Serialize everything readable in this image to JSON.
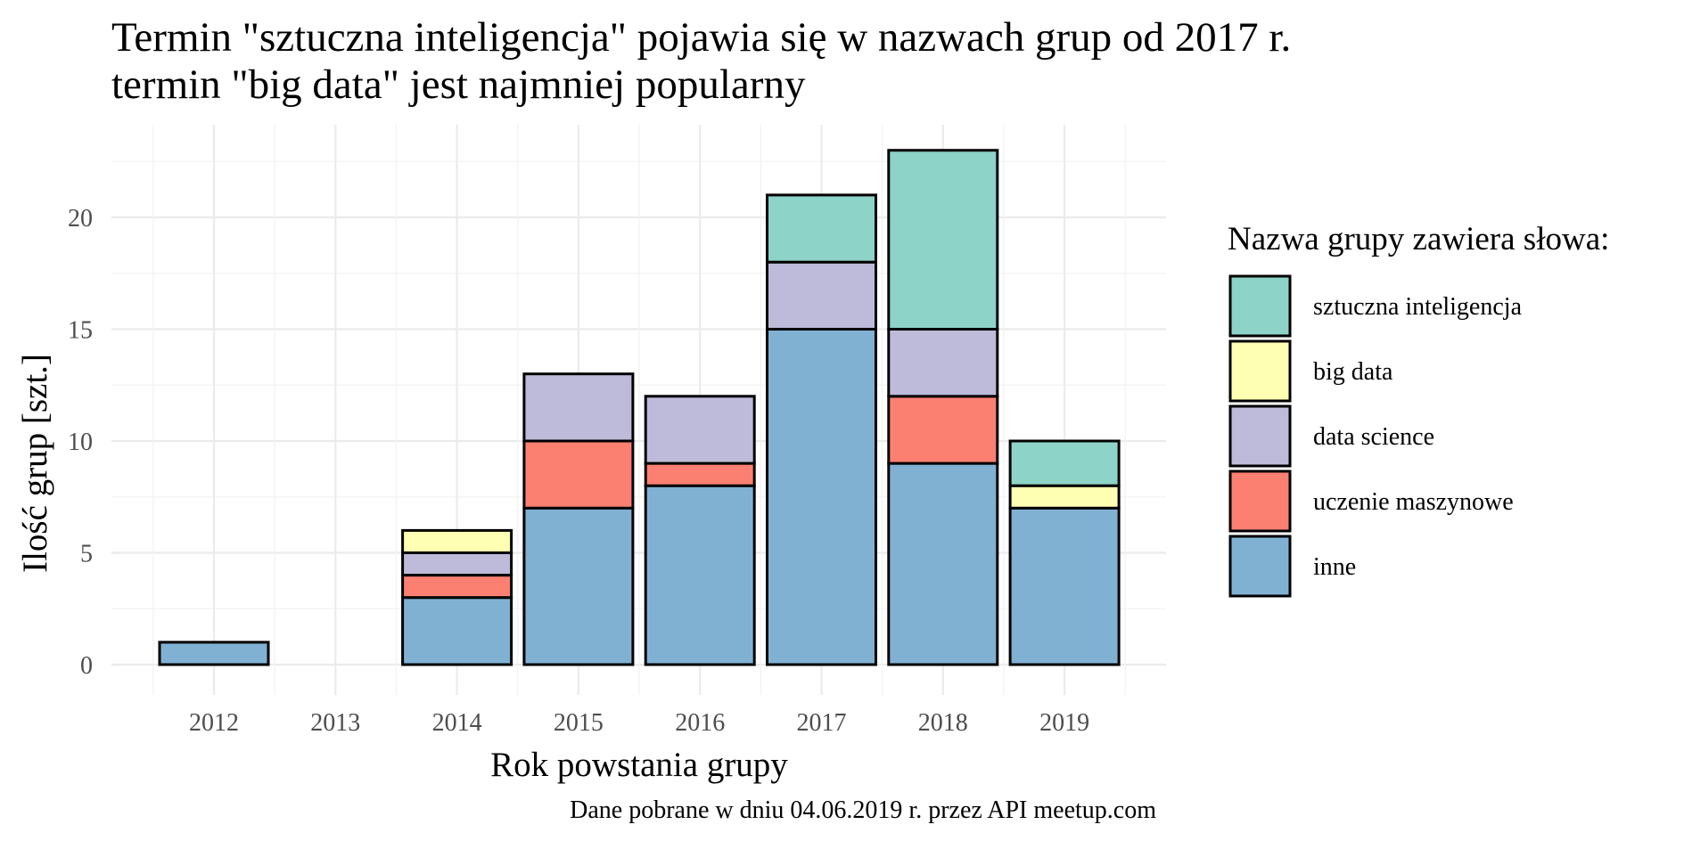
{
  "chart_data": {
    "type": "bar",
    "stacked": true,
    "title": "Termin \"sztuczna inteligencja\" pojawia się w nazwach grup od 2017 r.",
    "subtitle": "termin \"big data\" jest najmniej popularny",
    "xlabel": "Rok powstania grupy",
    "ylabel": "Ilość grup [szt.]",
    "caption": "Dane pobrane w dniu 04.06.2019 r. przez API meetup.com",
    "categories": [
      "2012",
      "2013",
      "2014",
      "2015",
      "2016",
      "2017",
      "2018",
      "2019"
    ],
    "ylim": [
      0,
      23
    ],
    "yticks": [
      0,
      5,
      10,
      15,
      20
    ],
    "grid": true,
    "legend_title": "Nazwa grupy zawiera słowa:",
    "legend_position": "right",
    "series": [
      {
        "name": "inne",
        "color": "#80b1d3",
        "values": [
          1,
          0,
          3,
          7,
          8,
          15,
          9,
          7
        ]
      },
      {
        "name": "uczenie maszynowe",
        "color": "#fb8072",
        "values": [
          0,
          0,
          1,
          3,
          1,
          0,
          3,
          0
        ]
      },
      {
        "name": "data science",
        "color": "#bebada",
        "values": [
          0,
          0,
          1,
          3,
          3,
          3,
          3,
          0
        ]
      },
      {
        "name": "big data",
        "color": "#ffffb3",
        "values": [
          0,
          0,
          1,
          0,
          0,
          0,
          0,
          1
        ]
      },
      {
        "name": "sztuczna inteligencja",
        "color": "#8dd3c7",
        "values": [
          0,
          0,
          0,
          0,
          0,
          3,
          8,
          2
        ]
      }
    ],
    "legend_order": [
      "sztuczna inteligencja",
      "big data",
      "data science",
      "uczenie maszynowe",
      "inne"
    ]
  }
}
